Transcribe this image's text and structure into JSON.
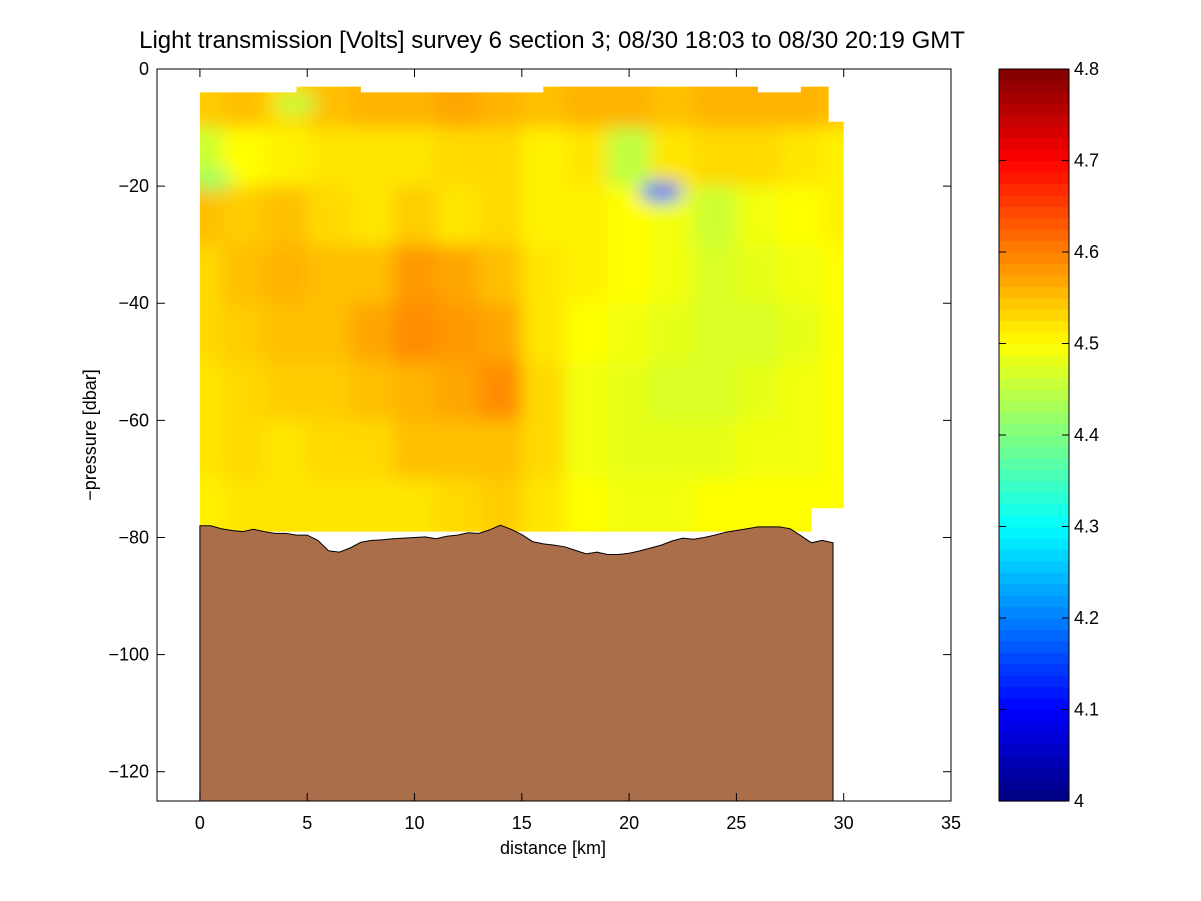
{
  "chart_data": {
    "type": "heatmap",
    "title": "Light transmission [Volts] survey 6 section 3; 08/30 18:03 to 08/30 20:19 GMT",
    "xlabel": "distance [km]",
    "ylabel": "−pressure [dbar]",
    "xlim": [
      -2,
      35
    ],
    "ylim": [
      -125,
      0
    ],
    "x_ticks": [
      0,
      5,
      10,
      15,
      20,
      25,
      30,
      35
    ],
    "x_tick_labels": [
      "0",
      "5",
      "10",
      "15",
      "20",
      "25",
      "30",
      "35"
    ],
    "y_ticks": [
      0,
      -20,
      -40,
      -60,
      -80,
      -100,
      -120
    ],
    "y_tick_labels": [
      "0",
      "−20",
      "−40",
      "−60",
      "−80",
      "−100",
      "−120"
    ],
    "colorbar": {
      "range": [
        4.0,
        4.8
      ],
      "ticks": [
        4.0,
        4.1,
        4.2,
        4.3,
        4.4,
        4.5,
        4.6,
        4.7,
        4.8
      ],
      "tick_labels": [
        "4",
        "4.1",
        "4.2",
        "4.3",
        "4.4",
        "4.5",
        "4.6",
        "4.7",
        "4.8"
      ],
      "colormap": "jet"
    },
    "grid": false,
    "x_km": [
      0.0,
      2.0,
      4.0,
      6.0,
      8.0,
      10.0,
      12.0,
      14.0,
      16.0,
      18.0,
      20.0,
      22.0,
      24.0,
      26.0,
      28.0,
      30.0
    ],
    "pressure_dbar": [
      -5,
      -15,
      -25,
      -35,
      -45,
      -55,
      -65,
      -75
    ],
    "values": [
      [
        4.54,
        4.55,
        4.53,
        4.55,
        4.56,
        4.56,
        4.57,
        4.56,
        4.55,
        4.56,
        4.56,
        4.55,
        4.56,
        4.56,
        4.56,
        4.55
      ],
      [
        4.46,
        4.5,
        4.51,
        4.52,
        4.52,
        4.52,
        4.53,
        4.53,
        4.51,
        4.52,
        4.45,
        4.52,
        4.53,
        4.53,
        4.52,
        4.51
      ],
      [
        4.55,
        4.54,
        4.55,
        4.53,
        4.52,
        4.54,
        4.52,
        4.53,
        4.51,
        4.51,
        4.5,
        4.49,
        4.46,
        4.49,
        4.5,
        4.51
      ],
      [
        4.53,
        4.55,
        4.56,
        4.55,
        4.55,
        4.58,
        4.57,
        4.55,
        4.52,
        4.51,
        4.5,
        4.49,
        4.47,
        4.48,
        4.49,
        4.5
      ],
      [
        4.53,
        4.54,
        4.55,
        4.55,
        4.57,
        4.59,
        4.58,
        4.57,
        4.52,
        4.5,
        4.49,
        4.48,
        4.47,
        4.47,
        4.48,
        4.5
      ],
      [
        4.52,
        4.53,
        4.54,
        4.54,
        4.55,
        4.56,
        4.57,
        4.59,
        4.53,
        4.49,
        4.48,
        4.47,
        4.47,
        4.48,
        4.49,
        4.5
      ],
      [
        4.52,
        4.53,
        4.52,
        4.53,
        4.53,
        4.55,
        4.55,
        4.55,
        4.53,
        4.49,
        4.48,
        4.48,
        4.48,
        4.49,
        4.49,
        4.5
      ],
      [
        4.51,
        4.52,
        4.52,
        4.52,
        4.52,
        4.52,
        4.53,
        4.54,
        4.52,
        4.5,
        4.49,
        4.49,
        4.5,
        4.5,
        4.5,
        4.5
      ]
    ],
    "anomalies": [
      {
        "x": 21.5,
        "y": -21,
        "value": 4.18
      },
      {
        "x": 0.5,
        "y": -19,
        "value": 4.42
      },
      {
        "x": 4.5,
        "y": -6,
        "value": 4.45
      }
    ],
    "seafloor": {
      "color": "#ab6e4a",
      "x": [
        0.0,
        0.5,
        1.0,
        1.5,
        2.0,
        2.5,
        3.0,
        3.5,
        4.0,
        4.5,
        5.0,
        5.5,
        6.0,
        6.5,
        7.0,
        7.5,
        8.0,
        8.5,
        9.0,
        9.5,
        10.0,
        10.5,
        11.0,
        11.5,
        12.0,
        12.5,
        13.0,
        13.5,
        14.0,
        14.5,
        15.0,
        15.5,
        16.0,
        16.5,
        17.0,
        17.5,
        18.0,
        18.5,
        19.0,
        19.5,
        20.0,
        20.5,
        21.0,
        21.5,
        22.0,
        22.5,
        23.0,
        23.5,
        24.0,
        24.5,
        25.0,
        25.5,
        26.0,
        26.5,
        27.0,
        27.5,
        28.0,
        28.5,
        29.0,
        29.5
      ],
      "y": [
        -78.0,
        -78.0,
        -78.5,
        -78.8,
        -79.0,
        -78.6,
        -79.0,
        -79.3,
        -79.3,
        -79.6,
        -79.6,
        -80.5,
        -82.3,
        -82.5,
        -81.8,
        -80.8,
        -80.5,
        -80.4,
        -80.2,
        -80.1,
        -80.0,
        -79.9,
        -80.2,
        -79.8,
        -79.6,
        -79.2,
        -79.3,
        -78.7,
        -77.9,
        -78.6,
        -79.5,
        -80.7,
        -81.1,
        -81.3,
        -81.6,
        -82.2,
        -82.8,
        -82.5,
        -82.9,
        -82.9,
        -82.7,
        -82.3,
        -81.8,
        -81.3,
        -80.6,
        -80.1,
        -80.3,
        -80.0,
        -79.6,
        -79.1,
        -78.8,
        -78.5,
        -78.2,
        -78.2,
        -78.2,
        -78.5,
        -79.7,
        -80.9,
        -80.5,
        -80.9
      ]
    },
    "data_extent": {
      "x": [
        0.0,
        30.0
      ],
      "y": [
        -4,
        -81
      ]
    }
  }
}
